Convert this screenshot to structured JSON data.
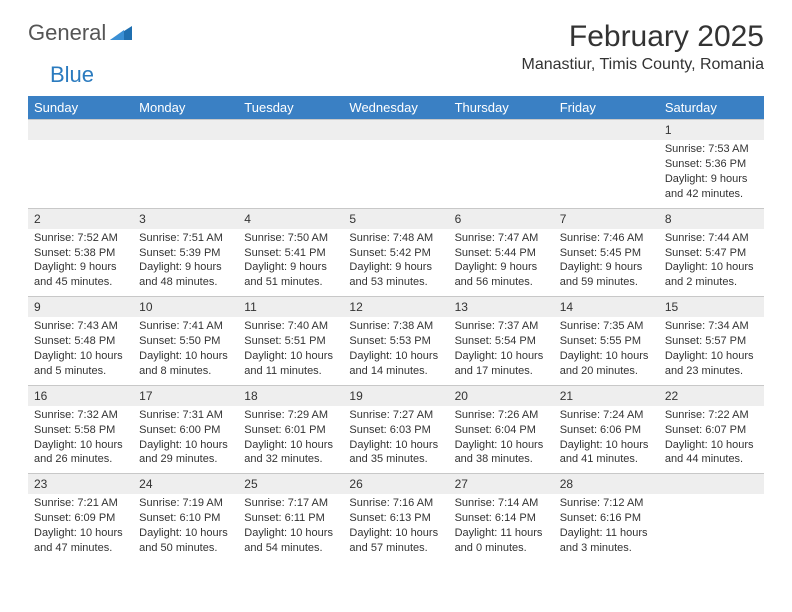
{
  "logo": {
    "text1": "General",
    "text2": "Blue"
  },
  "title": "February 2025",
  "location": "Manastiur, Timis County, Romania",
  "colors": {
    "header_bg": "#3a80c4",
    "header_text": "#ffffff",
    "daynum_bg": "#eeeeee",
    "border": "#c8c8c8",
    "logo_gray": "#555555",
    "logo_blue": "#2b7bbf"
  },
  "day_headers": [
    "Sunday",
    "Monday",
    "Tuesday",
    "Wednesday",
    "Thursday",
    "Friday",
    "Saturday"
  ],
  "weeks": [
    [
      {
        "n": "",
        "lines": []
      },
      {
        "n": "",
        "lines": []
      },
      {
        "n": "",
        "lines": []
      },
      {
        "n": "",
        "lines": []
      },
      {
        "n": "",
        "lines": []
      },
      {
        "n": "",
        "lines": []
      },
      {
        "n": "1",
        "lines": [
          "Sunrise: 7:53 AM",
          "Sunset: 5:36 PM",
          "Daylight: 9 hours and 42 minutes."
        ]
      }
    ],
    [
      {
        "n": "2",
        "lines": [
          "Sunrise: 7:52 AM",
          "Sunset: 5:38 PM",
          "Daylight: 9 hours and 45 minutes."
        ]
      },
      {
        "n": "3",
        "lines": [
          "Sunrise: 7:51 AM",
          "Sunset: 5:39 PM",
          "Daylight: 9 hours and 48 minutes."
        ]
      },
      {
        "n": "4",
        "lines": [
          "Sunrise: 7:50 AM",
          "Sunset: 5:41 PM",
          "Daylight: 9 hours and 51 minutes."
        ]
      },
      {
        "n": "5",
        "lines": [
          "Sunrise: 7:48 AM",
          "Sunset: 5:42 PM",
          "Daylight: 9 hours and 53 minutes."
        ]
      },
      {
        "n": "6",
        "lines": [
          "Sunrise: 7:47 AM",
          "Sunset: 5:44 PM",
          "Daylight: 9 hours and 56 minutes."
        ]
      },
      {
        "n": "7",
        "lines": [
          "Sunrise: 7:46 AM",
          "Sunset: 5:45 PM",
          "Daylight: 9 hours and 59 minutes."
        ]
      },
      {
        "n": "8",
        "lines": [
          "Sunrise: 7:44 AM",
          "Sunset: 5:47 PM",
          "Daylight: 10 hours and 2 minutes."
        ]
      }
    ],
    [
      {
        "n": "9",
        "lines": [
          "Sunrise: 7:43 AM",
          "Sunset: 5:48 PM",
          "Daylight: 10 hours and 5 minutes."
        ]
      },
      {
        "n": "10",
        "lines": [
          "Sunrise: 7:41 AM",
          "Sunset: 5:50 PM",
          "Daylight: 10 hours and 8 minutes."
        ]
      },
      {
        "n": "11",
        "lines": [
          "Sunrise: 7:40 AM",
          "Sunset: 5:51 PM",
          "Daylight: 10 hours and 11 minutes."
        ]
      },
      {
        "n": "12",
        "lines": [
          "Sunrise: 7:38 AM",
          "Sunset: 5:53 PM",
          "Daylight: 10 hours and 14 minutes."
        ]
      },
      {
        "n": "13",
        "lines": [
          "Sunrise: 7:37 AM",
          "Sunset: 5:54 PM",
          "Daylight: 10 hours and 17 minutes."
        ]
      },
      {
        "n": "14",
        "lines": [
          "Sunrise: 7:35 AM",
          "Sunset: 5:55 PM",
          "Daylight: 10 hours and 20 minutes."
        ]
      },
      {
        "n": "15",
        "lines": [
          "Sunrise: 7:34 AM",
          "Sunset: 5:57 PM",
          "Daylight: 10 hours and 23 minutes."
        ]
      }
    ],
    [
      {
        "n": "16",
        "lines": [
          "Sunrise: 7:32 AM",
          "Sunset: 5:58 PM",
          "Daylight: 10 hours and 26 minutes."
        ]
      },
      {
        "n": "17",
        "lines": [
          "Sunrise: 7:31 AM",
          "Sunset: 6:00 PM",
          "Daylight: 10 hours and 29 minutes."
        ]
      },
      {
        "n": "18",
        "lines": [
          "Sunrise: 7:29 AM",
          "Sunset: 6:01 PM",
          "Daylight: 10 hours and 32 minutes."
        ]
      },
      {
        "n": "19",
        "lines": [
          "Sunrise: 7:27 AM",
          "Sunset: 6:03 PM",
          "Daylight: 10 hours and 35 minutes."
        ]
      },
      {
        "n": "20",
        "lines": [
          "Sunrise: 7:26 AM",
          "Sunset: 6:04 PM",
          "Daylight: 10 hours and 38 minutes."
        ]
      },
      {
        "n": "21",
        "lines": [
          "Sunrise: 7:24 AM",
          "Sunset: 6:06 PM",
          "Daylight: 10 hours and 41 minutes."
        ]
      },
      {
        "n": "22",
        "lines": [
          "Sunrise: 7:22 AM",
          "Sunset: 6:07 PM",
          "Daylight: 10 hours and 44 minutes."
        ]
      }
    ],
    [
      {
        "n": "23",
        "lines": [
          "Sunrise: 7:21 AM",
          "Sunset: 6:09 PM",
          "Daylight: 10 hours and 47 minutes."
        ]
      },
      {
        "n": "24",
        "lines": [
          "Sunrise: 7:19 AM",
          "Sunset: 6:10 PM",
          "Daylight: 10 hours and 50 minutes."
        ]
      },
      {
        "n": "25",
        "lines": [
          "Sunrise: 7:17 AM",
          "Sunset: 6:11 PM",
          "Daylight: 10 hours and 54 minutes."
        ]
      },
      {
        "n": "26",
        "lines": [
          "Sunrise: 7:16 AM",
          "Sunset: 6:13 PM",
          "Daylight: 10 hours and 57 minutes."
        ]
      },
      {
        "n": "27",
        "lines": [
          "Sunrise: 7:14 AM",
          "Sunset: 6:14 PM",
          "Daylight: 11 hours and 0 minutes."
        ]
      },
      {
        "n": "28",
        "lines": [
          "Sunrise: 7:12 AM",
          "Sunset: 6:16 PM",
          "Daylight: 11 hours and 3 minutes."
        ]
      },
      {
        "n": "",
        "lines": []
      }
    ]
  ]
}
